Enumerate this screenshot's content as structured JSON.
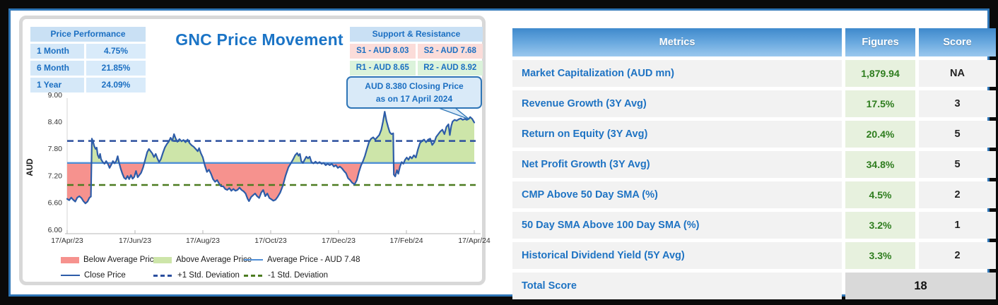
{
  "chart_panel": {
    "title": "GNC Price Movement",
    "price_performance": {
      "title": "Price Performance",
      "rows": [
        {
          "label": "1 Month",
          "value": "4.75%"
        },
        {
          "label": "6 Month",
          "value": "21.85%"
        },
        {
          "label": "1 Year",
          "value": "24.09%"
        }
      ]
    },
    "support_resistance": {
      "title": "Support & Resistance",
      "cells": [
        {
          "label": "S1 - AUD 8.03",
          "type": "support"
        },
        {
          "label": "S2 - AUD 7.68",
          "type": "support"
        },
        {
          "label": "R1 - AUD 8.65",
          "type": "resistance"
        },
        {
          "label": "R2 - AUD 8.92",
          "type": "resistance"
        }
      ]
    },
    "callout": {
      "line1": "AUD 8.380 Closing Price",
      "line2": "as on 17 April 2024"
    },
    "legend": [
      {
        "type": "fill-red",
        "label": "Below Average Price"
      },
      {
        "type": "fill-green",
        "label": "Above Average Price"
      },
      {
        "type": "line-light",
        "label": "Average Price - AUD 7.48"
      },
      {
        "type": "line-dark",
        "label": "Close Price"
      },
      {
        "type": "dash-blue",
        "label": "+1 Std. Deviation"
      },
      {
        "type": "dash-green",
        "label": "-1 Std. Deviation"
      }
    ]
  },
  "chart_data": {
    "type": "area",
    "title": "GNC Price Movement",
    "ylabel": "AUD",
    "ylim": [
      6.0,
      9.0
    ],
    "y_ticks": [
      9.0,
      8.4,
      7.8,
      7.2,
      6.6,
      6.0
    ],
    "x_tick_labels": [
      "17/Apr/23",
      "17/Jun/23",
      "17/Aug/23",
      "17/Oct/23",
      "17/Dec/23",
      "17/Feb/24",
      "17/Apr/24"
    ],
    "average_price": 7.48,
    "std_plus": 7.97,
    "std_minus": 6.99,
    "closing_price": 8.38,
    "closing_date": "17 April 2024",
    "colors": {
      "close_line": "#2d5ca8",
      "average_line": "#4e8ed6",
      "std_plus_line": "#2b4f9e",
      "std_minus_line": "#4c7c21",
      "above_fill": "#cde5a9",
      "below_fill": "#f6928e"
    },
    "series": [
      {
        "name": "Close Price",
        "points": [
          [
            0.0,
            6.68
          ],
          [
            0.06,
            6.65
          ],
          [
            0.12,
            6.71
          ],
          [
            0.18,
            6.66
          ],
          [
            0.24,
            6.62
          ],
          [
            0.3,
            6.71
          ],
          [
            0.36,
            6.74
          ],
          [
            0.42,
            6.7
          ],
          [
            0.48,
            6.63
          ],
          [
            0.54,
            6.58
          ],
          [
            0.6,
            6.62
          ],
          [
            0.66,
            6.71
          ],
          [
            0.7,
            6.73
          ],
          [
            0.73,
            8.02
          ],
          [
            0.76,
            7.96
          ],
          [
            0.8,
            7.85
          ],
          [
            0.84,
            7.79
          ],
          [
            0.87,
            7.82
          ],
          [
            0.9,
            7.66
          ],
          [
            0.94,
            7.59
          ],
          [
            0.97,
            7.68
          ],
          [
            1.0,
            7.56
          ],
          [
            1.05,
            7.5
          ],
          [
            1.1,
            7.46
          ],
          [
            1.15,
            7.52
          ],
          [
            1.2,
            7.46
          ],
          [
            1.25,
            7.37
          ],
          [
            1.3,
            7.44
          ],
          [
            1.35,
            7.52
          ],
          [
            1.4,
            7.47
          ],
          [
            1.45,
            7.53
          ],
          [
            1.49,
            7.63
          ],
          [
            1.53,
            7.49
          ],
          [
            1.58,
            7.35
          ],
          [
            1.63,
            7.24
          ],
          [
            1.68,
            7.15
          ],
          [
            1.73,
            7.12
          ],
          [
            1.78,
            7.19
          ],
          [
            1.83,
            7.12
          ],
          [
            1.88,
            7.21
          ],
          [
            1.93,
            7.13
          ],
          [
            1.98,
            7.17
          ],
          [
            2.03,
            7.3
          ],
          [
            2.08,
            7.16
          ],
          [
            2.13,
            7.21
          ],
          [
            2.18,
            7.26
          ],
          [
            2.24,
            7.38
          ],
          [
            2.3,
            7.55
          ],
          [
            2.36,
            7.72
          ],
          [
            2.41,
            7.79
          ],
          [
            2.46,
            7.74
          ],
          [
            2.51,
            7.69
          ],
          [
            2.56,
            7.61
          ],
          [
            2.61,
            7.68
          ],
          [
            2.66,
            7.58
          ],
          [
            2.71,
            7.5
          ],
          [
            2.76,
            7.56
          ],
          [
            2.82,
            7.7
          ],
          [
            2.88,
            7.82
          ],
          [
            2.94,
            7.9
          ],
          [
            3.0,
            7.96
          ],
          [
            3.05,
            8.04
          ],
          [
            3.1,
            7.97
          ],
          [
            3.15,
            8.12
          ],
          [
            3.2,
            8.02
          ],
          [
            3.25,
            7.95
          ],
          [
            3.31,
            8.01
          ],
          [
            3.37,
            7.96
          ],
          [
            3.43,
            7.99
          ],
          [
            3.49,
            7.94
          ],
          [
            3.55,
            8.0
          ],
          [
            3.61,
            7.92
          ],
          [
            3.67,
            7.87
          ],
          [
            3.73,
            7.84
          ],
          [
            3.79,
            7.79
          ],
          [
            3.85,
            7.74
          ],
          [
            3.89,
            7.81
          ],
          [
            3.94,
            7.7
          ],
          [
            4.0,
            7.6
          ],
          [
            4.06,
            7.42
          ],
          [
            4.12,
            7.28
          ],
          [
            4.18,
            7.33
          ],
          [
            4.24,
            7.24
          ],
          [
            4.3,
            7.12
          ],
          [
            4.36,
            7.06
          ],
          [
            4.42,
            7.1
          ],
          [
            4.48,
            7.02
          ],
          [
            4.54,
            6.96
          ],
          [
            4.6,
            6.96
          ],
          [
            4.66,
            6.9
          ],
          [
            4.72,
            6.88
          ],
          [
            4.78,
            6.92
          ],
          [
            4.84,
            6.86
          ],
          [
            4.9,
            6.9
          ],
          [
            4.96,
            6.86
          ],
          [
            5.02,
            6.88
          ],
          [
            5.08,
            6.93
          ],
          [
            5.14,
            6.88
          ],
          [
            5.2,
            6.85
          ],
          [
            5.26,
            6.8
          ],
          [
            5.32,
            6.68
          ],
          [
            5.36,
            6.63
          ],
          [
            5.42,
            6.72
          ],
          [
            5.48,
            6.76
          ],
          [
            5.54,
            6.8
          ],
          [
            5.6,
            6.74
          ],
          [
            5.66,
            6.7
          ],
          [
            5.72,
            6.82
          ],
          [
            5.78,
            6.88
          ],
          [
            5.84,
            6.74
          ],
          [
            5.9,
            6.8
          ],
          [
            5.96,
            6.7
          ],
          [
            6.02,
            6.67
          ],
          [
            6.08,
            6.64
          ],
          [
            6.14,
            6.66
          ],
          [
            6.2,
            6.72
          ],
          [
            6.28,
            6.82
          ],
          [
            6.36,
            6.98
          ],
          [
            6.44,
            7.2
          ],
          [
            6.52,
            7.38
          ],
          [
            6.6,
            7.48
          ],
          [
            6.66,
            7.56
          ],
          [
            6.72,
            7.65
          ],
          [
            6.78,
            7.7
          ],
          [
            6.82,
            7.64
          ],
          [
            6.86,
            7.68
          ],
          [
            6.9,
            7.52
          ],
          [
            6.95,
            7.48
          ],
          [
            7.0,
            7.55
          ],
          [
            7.05,
            7.62
          ],
          [
            7.1,
            7.58
          ],
          [
            7.15,
            7.62
          ],
          [
            7.2,
            7.5
          ],
          [
            7.26,
            7.47
          ],
          [
            7.32,
            7.51
          ],
          [
            7.38,
            7.47
          ],
          [
            7.44,
            7.5
          ],
          [
            7.5,
            7.46
          ],
          [
            7.56,
            7.48
          ],
          [
            7.62,
            7.43
          ],
          [
            7.68,
            7.46
          ],
          [
            7.74,
            7.43
          ],
          [
            7.8,
            7.46
          ],
          [
            7.86,
            7.4
          ],
          [
            7.92,
            7.43
          ],
          [
            7.98,
            7.37
          ],
          [
            8.04,
            7.4
          ],
          [
            8.1,
            7.36
          ],
          [
            8.16,
            7.3
          ],
          [
            8.22,
            7.25
          ],
          [
            8.28,
            7.14
          ],
          [
            8.34,
            7.1
          ],
          [
            8.4,
            7.04
          ],
          [
            8.47,
            7.0
          ],
          [
            8.54,
            7.1
          ],
          [
            8.6,
            7.28
          ],
          [
            8.66,
            7.42
          ],
          [
            8.72,
            7.52
          ],
          [
            8.78,
            7.64
          ],
          [
            8.84,
            7.8
          ],
          [
            8.9,
            7.95
          ],
          [
            8.96,
            8.02
          ],
          [
            9.02,
            8.05
          ],
          [
            9.08,
            8.0
          ],
          [
            9.14,
            8.05
          ],
          [
            9.2,
            8.1
          ],
          [
            9.26,
            8.22
          ],
          [
            9.31,
            8.4
          ],
          [
            9.36,
            8.62
          ],
          [
            9.41,
            8.42
          ],
          [
            9.46,
            8.28
          ],
          [
            9.51,
            8.16
          ],
          [
            9.56,
            8.12
          ],
          [
            9.61,
            8.14
          ],
          [
            9.63,
            7.22
          ],
          [
            9.67,
            7.18
          ],
          [
            9.72,
            7.32
          ],
          [
            9.76,
            7.24
          ],
          [
            9.81,
            7.4
          ],
          [
            9.86,
            7.5
          ],
          [
            9.91,
            7.46
          ],
          [
            9.96,
            7.55
          ],
          [
            10.01,
            7.6
          ],
          [
            10.06,
            7.55
          ],
          [
            10.11,
            7.62
          ],
          [
            10.16,
            7.58
          ],
          [
            10.22,
            7.65
          ],
          [
            10.28,
            7.6
          ],
          [
            10.34,
            7.78
          ],
          [
            10.4,
            7.92
          ],
          [
            10.46,
            7.97
          ],
          [
            10.52,
            8.0
          ],
          [
            10.58,
            7.94
          ],
          [
            10.64,
            8.0
          ],
          [
            10.7,
            8.02
          ],
          [
            10.76,
            7.88
          ],
          [
            10.82,
            7.94
          ],
          [
            10.88,
            8.06
          ],
          [
            10.94,
            8.12
          ],
          [
            11.0,
            8.18
          ],
          [
            11.06,
            8.22
          ],
          [
            11.12,
            8.12
          ],
          [
            11.18,
            8.28
          ],
          [
            11.24,
            8.34
          ],
          [
            11.28,
            8.1
          ],
          [
            11.32,
            8.3
          ],
          [
            11.36,
            8.4
          ],
          [
            11.42,
            8.44
          ],
          [
            11.48,
            8.42
          ],
          [
            11.54,
            8.45
          ],
          [
            11.6,
            8.47
          ],
          [
            11.66,
            8.44
          ],
          [
            11.72,
            8.46
          ],
          [
            11.78,
            8.44
          ],
          [
            11.84,
            8.46
          ],
          [
            11.88,
            8.5
          ],
          [
            11.94,
            8.46
          ],
          [
            12.0,
            8.38
          ]
        ]
      }
    ]
  },
  "metrics_table": {
    "headers": [
      "Metrics",
      "Figures",
      "Score"
    ],
    "rows": [
      {
        "metric": "Market Capitalization (AUD mn)",
        "figure": "1,879.94",
        "score": "NA"
      },
      {
        "metric": "Revenue Growth (3Y Avg)",
        "figure": "17.5%",
        "score": "3"
      },
      {
        "metric": "Return on Equity (3Y Avg)",
        "figure": "20.4%",
        "score": "5"
      },
      {
        "metric": "Net Profit Growth (3Y Avg)",
        "figure": "34.8%",
        "score": "5"
      },
      {
        "metric": "CMP Above 50 Day SMA (%)",
        "figure": "4.5%",
        "score": "2"
      },
      {
        "metric": "50 Day SMA Above 100 Day SMA (%)",
        "figure": "3.2%",
        "score": "1"
      },
      {
        "metric": "Historical Dividend Yield (5Y Avg)",
        "figure": "3.3%",
        "score": "2"
      }
    ],
    "total": {
      "label": "Total Score",
      "value": "18"
    }
  }
}
